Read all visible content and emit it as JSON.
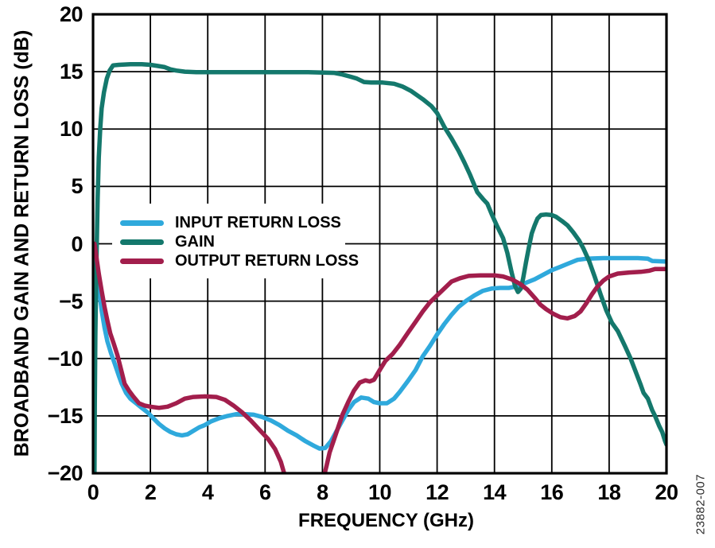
{
  "figure": {
    "watermark": "23882-007"
  },
  "chart_data": {
    "type": "line",
    "title": "",
    "xlabel": "FREQUENCY (GHz)",
    "ylabel": "BROADBAND GAIN AND RETURN LOSS (dB)",
    "xlim": [
      0,
      20
    ],
    "ylim": [
      -20,
      20
    ],
    "grid": true,
    "grid_color": "#000000",
    "frame_color": "#000000",
    "xticks": [
      0,
      2,
      4,
      6,
      8,
      10,
      12,
      14,
      16,
      18,
      20
    ],
    "xtick_labels": [
      "0",
      "2",
      "4",
      "6",
      "8",
      "10",
      "12",
      "14",
      "16",
      "18",
      "20"
    ],
    "yticks": [
      20,
      15,
      10,
      5,
      0,
      -5,
      -10,
      -15,
      -20
    ],
    "ytick_labels": [
      "20",
      "15",
      "10",
      "5",
      "0",
      "−5",
      "−10",
      "−15",
      "−20"
    ],
    "legend": {
      "position": "inside-upper-left-of-center"
    },
    "series": [
      {
        "name": "INPUT RETURN LOSS",
        "color": "#2FA9DC",
        "points": [
          [
            0.05,
            0
          ],
          [
            0.1,
            -1.2
          ],
          [
            0.15,
            -2.6
          ],
          [
            0.22,
            -4.2
          ],
          [
            0.3,
            -5.8
          ],
          [
            0.4,
            -7.3
          ],
          [
            0.5,
            -8.5
          ],
          [
            0.62,
            -9.5
          ],
          [
            0.75,
            -10.4
          ],
          [
            0.9,
            -11.5
          ],
          [
            1.0,
            -12.2
          ],
          [
            1.15,
            -13.0
          ],
          [
            1.3,
            -13.5
          ],
          [
            1.5,
            -13.9
          ],
          [
            1.7,
            -14.3
          ],
          [
            1.9,
            -14.7
          ],
          [
            2.1,
            -15.2
          ],
          [
            2.3,
            -15.7
          ],
          [
            2.5,
            -16.1
          ],
          [
            2.7,
            -16.4
          ],
          [
            2.9,
            -16.6
          ],
          [
            3.1,
            -16.7
          ],
          [
            3.3,
            -16.6
          ],
          [
            3.5,
            -16.3
          ],
          [
            3.7,
            -16.0
          ],
          [
            3.9,
            -15.8
          ],
          [
            4.1,
            -15.5
          ],
          [
            4.4,
            -15.2
          ],
          [
            4.7,
            -15.0
          ],
          [
            5.0,
            -14.85
          ],
          [
            5.3,
            -14.85
          ],
          [
            5.6,
            -14.9
          ],
          [
            5.9,
            -15.1
          ],
          [
            6.2,
            -15.4
          ],
          [
            6.5,
            -15.8
          ],
          [
            6.8,
            -16.3
          ],
          [
            7.1,
            -16.7
          ],
          [
            7.4,
            -17.2
          ],
          [
            7.7,
            -17.6
          ],
          [
            7.9,
            -17.85
          ],
          [
            8.1,
            -17.8
          ],
          [
            8.3,
            -17.2
          ],
          [
            8.5,
            -16.3
          ],
          [
            8.7,
            -15.4
          ],
          [
            8.9,
            -14.5
          ],
          [
            9.1,
            -13.8
          ],
          [
            9.35,
            -13.4
          ],
          [
            9.6,
            -13.5
          ],
          [
            9.8,
            -13.8
          ],
          [
            10.0,
            -13.9
          ],
          [
            10.25,
            -13.9
          ],
          [
            10.5,
            -13.5
          ],
          [
            10.7,
            -12.9
          ],
          [
            11.0,
            -11.9
          ],
          [
            11.25,
            -11.0
          ],
          [
            11.5,
            -9.8
          ],
          [
            11.75,
            -8.9
          ],
          [
            12.0,
            -7.9
          ],
          [
            12.25,
            -7.0
          ],
          [
            12.5,
            -6.2
          ],
          [
            12.75,
            -5.5
          ],
          [
            13.0,
            -5.0
          ],
          [
            13.3,
            -4.5
          ],
          [
            13.6,
            -4.1
          ],
          [
            13.9,
            -3.9
          ],
          [
            14.2,
            -3.85
          ],
          [
            14.5,
            -3.85
          ],
          [
            14.8,
            -3.7
          ],
          [
            15.1,
            -3.4
          ],
          [
            15.4,
            -3.1
          ],
          [
            15.7,
            -2.7
          ],
          [
            16.0,
            -2.3
          ],
          [
            16.3,
            -2.0
          ],
          [
            16.6,
            -1.7
          ],
          [
            16.9,
            -1.4
          ],
          [
            17.2,
            -1.3
          ],
          [
            17.8,
            -1.25
          ],
          [
            18.4,
            -1.25
          ],
          [
            19.0,
            -1.25
          ],
          [
            19.35,
            -1.3
          ],
          [
            19.5,
            -1.5
          ],
          [
            20,
            -1.55
          ]
        ]
      },
      {
        "name": "GAIN",
        "color": "#14786C",
        "points": [
          [
            0.05,
            -20
          ],
          [
            0.06,
            -14
          ],
          [
            0.08,
            -8
          ],
          [
            0.1,
            -4.5
          ],
          [
            0.13,
            0
          ],
          [
            0.16,
            4
          ],
          [
            0.2,
            7.5
          ],
          [
            0.25,
            10
          ],
          [
            0.3,
            11.8
          ],
          [
            0.38,
            13.2
          ],
          [
            0.48,
            14.4
          ],
          [
            0.58,
            15.1
          ],
          [
            0.7,
            15.55
          ],
          [
            0.9,
            15.6
          ],
          [
            1.3,
            15.65
          ],
          [
            1.7,
            15.65
          ],
          [
            2.0,
            15.6
          ],
          [
            2.25,
            15.5
          ],
          [
            2.5,
            15.4
          ],
          [
            2.7,
            15.2
          ],
          [
            2.9,
            15.1
          ],
          [
            3.2,
            15.0
          ],
          [
            3.6,
            14.95
          ],
          [
            4.5,
            14.95
          ],
          [
            5.5,
            14.95
          ],
          [
            6.5,
            14.95
          ],
          [
            7.5,
            14.95
          ],
          [
            8.4,
            14.9
          ],
          [
            8.7,
            14.75
          ],
          [
            9.0,
            14.55
          ],
          [
            9.2,
            14.4
          ],
          [
            9.45,
            14.1
          ],
          [
            9.7,
            14.05
          ],
          [
            10.1,
            14.05
          ],
          [
            10.5,
            13.95
          ],
          [
            10.8,
            13.7
          ],
          [
            11.1,
            13.3
          ],
          [
            11.5,
            12.6
          ],
          [
            11.8,
            12.0
          ],
          [
            12.0,
            11.4
          ],
          [
            12.25,
            10.2
          ],
          [
            12.5,
            9.2
          ],
          [
            12.75,
            8.1
          ],
          [
            12.95,
            7.1
          ],
          [
            13.15,
            6.0
          ],
          [
            13.4,
            4.5
          ],
          [
            13.6,
            3.9
          ],
          [
            13.75,
            3.5
          ],
          [
            13.9,
            2.6
          ],
          [
            14.1,
            1.5
          ],
          [
            14.3,
            0.5
          ],
          [
            14.45,
            -0.8
          ],
          [
            14.6,
            -2.5
          ],
          [
            14.72,
            -3.7
          ],
          [
            14.82,
            -4.2
          ],
          [
            14.92,
            -3.9
          ],
          [
            15.0,
            -3.0
          ],
          [
            15.1,
            -1.6
          ],
          [
            15.2,
            -0.3
          ],
          [
            15.3,
            0.9
          ],
          [
            15.4,
            1.6
          ],
          [
            15.5,
            2.2
          ],
          [
            15.62,
            2.5
          ],
          [
            15.8,
            2.55
          ],
          [
            16.0,
            2.5
          ],
          [
            16.15,
            2.35
          ],
          [
            16.35,
            2.0
          ],
          [
            16.55,
            1.6
          ],
          [
            16.75,
            1.0
          ],
          [
            16.95,
            0.3
          ],
          [
            17.1,
            -0.4
          ],
          [
            17.3,
            -1.5
          ],
          [
            17.5,
            -2.9
          ],
          [
            17.7,
            -4.4
          ],
          [
            17.9,
            -5.8
          ],
          [
            18.1,
            -6.9
          ],
          [
            18.3,
            -7.6
          ],
          [
            18.55,
            -8.9
          ],
          [
            18.75,
            -10.0
          ],
          [
            18.95,
            -11.3
          ],
          [
            19.1,
            -12.3
          ],
          [
            19.2,
            -13.0
          ],
          [
            19.35,
            -13.5
          ],
          [
            19.5,
            -14.5
          ],
          [
            19.6,
            -15.0
          ],
          [
            19.75,
            -15.9
          ],
          [
            19.85,
            -16.4
          ],
          [
            19.95,
            -17.2
          ],
          [
            20,
            -17.5
          ]
        ]
      },
      {
        "name": "OUTPUT RETURN LOSS",
        "color": "#A21E4C",
        "points": [
          [
            0.05,
            0
          ],
          [
            0.12,
            -1.2
          ],
          [
            0.2,
            -2.6
          ],
          [
            0.3,
            -4.1
          ],
          [
            0.4,
            -5.5
          ],
          [
            0.5,
            -6.7
          ],
          [
            0.6,
            -7.8
          ],
          [
            0.72,
            -8.7
          ],
          [
            0.85,
            -9.7
          ],
          [
            1.0,
            -11.2
          ],
          [
            1.1,
            -12.2
          ],
          [
            1.25,
            -12.8
          ],
          [
            1.4,
            -13.3
          ],
          [
            1.6,
            -13.9
          ],
          [
            1.8,
            -14.1
          ],
          [
            2.0,
            -14.2
          ],
          [
            2.3,
            -14.3
          ],
          [
            2.6,
            -14.2
          ],
          [
            2.9,
            -13.9
          ],
          [
            3.2,
            -13.5
          ],
          [
            3.5,
            -13.35
          ],
          [
            3.9,
            -13.3
          ],
          [
            4.3,
            -13.35
          ],
          [
            4.6,
            -13.6
          ],
          [
            4.9,
            -14.1
          ],
          [
            5.2,
            -14.7
          ],
          [
            5.5,
            -15.4
          ],
          [
            5.8,
            -16.2
          ],
          [
            6.1,
            -17.0
          ],
          [
            6.35,
            -17.9
          ],
          [
            6.55,
            -19.0
          ],
          [
            6.7,
            -20.3
          ],
          [
            8.05,
            -20.3
          ],
          [
            8.15,
            -19.3
          ],
          [
            8.25,
            -18.2
          ],
          [
            8.4,
            -17.1
          ],
          [
            8.55,
            -16.0
          ],
          [
            8.7,
            -14.9
          ],
          [
            8.9,
            -13.8
          ],
          [
            9.1,
            -12.8
          ],
          [
            9.3,
            -12.1
          ],
          [
            9.5,
            -11.9
          ],
          [
            9.65,
            -12.0
          ],
          [
            9.8,
            -11.85
          ],
          [
            10.0,
            -11.0
          ],
          [
            10.2,
            -10.2
          ],
          [
            10.45,
            -9.6
          ],
          [
            10.7,
            -8.8
          ],
          [
            11.0,
            -7.7
          ],
          [
            11.25,
            -6.8
          ],
          [
            11.5,
            -5.9
          ],
          [
            11.75,
            -5.1
          ],
          [
            12.0,
            -4.5
          ],
          [
            12.25,
            -3.9
          ],
          [
            12.5,
            -3.3
          ],
          [
            12.8,
            -3.0
          ],
          [
            13.1,
            -2.8
          ],
          [
            13.5,
            -2.75
          ],
          [
            14.0,
            -2.75
          ],
          [
            14.3,
            -2.85
          ],
          [
            14.6,
            -3.1
          ],
          [
            14.9,
            -3.5
          ],
          [
            15.15,
            -4.0
          ],
          [
            15.4,
            -4.7
          ],
          [
            15.6,
            -5.3
          ],
          [
            15.8,
            -5.7
          ],
          [
            16.05,
            -6.1
          ],
          [
            16.3,
            -6.4
          ],
          [
            16.55,
            -6.5
          ],
          [
            16.8,
            -6.3
          ],
          [
            17.0,
            -5.9
          ],
          [
            17.2,
            -5.2
          ],
          [
            17.4,
            -4.4
          ],
          [
            17.6,
            -3.7
          ],
          [
            17.8,
            -3.2
          ],
          [
            18.0,
            -2.85
          ],
          [
            18.3,
            -2.6
          ],
          [
            18.7,
            -2.5
          ],
          [
            19.1,
            -2.45
          ],
          [
            19.4,
            -2.35
          ],
          [
            19.6,
            -2.2
          ],
          [
            20,
            -2.2
          ]
        ]
      }
    ]
  }
}
